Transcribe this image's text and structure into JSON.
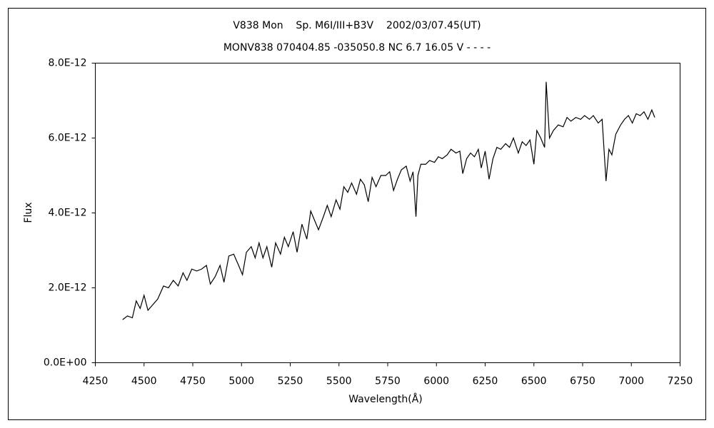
{
  "chart_data": {
    "type": "line",
    "title": "V838 Mon    Sp. M6I/III+B3V    2002/03/07.45(UT)",
    "subtitle": "MONV838 070404.85 -035050.8 NC 6.7 16.05 V - - - -",
    "x_label": "Wavelength(Å)",
    "y_label": "Flux",
    "color": "#000000",
    "grid": false,
    "xlim": [
      4250,
      7250
    ],
    "xticks": [
      4250,
      4500,
      4750,
      5000,
      5250,
      5500,
      5750,
      6000,
      6250,
      6500,
      6750,
      7000,
      7250
    ],
    "ylim": [
      0,
      8e-12
    ],
    "yticks": [
      {
        "value": 0,
        "label": "0.0E+00"
      },
      {
        "value": 2e-12,
        "label": "2.0E-12"
      },
      {
        "value": 4e-12,
        "label": "4.0E-12"
      },
      {
        "value": 6e-12,
        "label": "6.0E-12"
      },
      {
        "value": 8e-12,
        "label": "8.0E-12"
      }
    ],
    "x": [
      4390,
      4415,
      4440,
      4460,
      4480,
      4500,
      4520,
      4545,
      4570,
      4600,
      4625,
      4650,
      4675,
      4700,
      4720,
      4745,
      4770,
      4795,
      4820,
      4840,
      4865,
      4890,
      4910,
      4935,
      4960,
      4985,
      5005,
      5025,
      5050,
      5070,
      5090,
      5110,
      5130,
      5155,
      5175,
      5200,
      5220,
      5240,
      5265,
      5285,
      5310,
      5335,
      5355,
      5375,
      5395,
      5420,
      5440,
      5460,
      5485,
      5505,
      5525,
      5545,
      5565,
      5590,
      5610,
      5630,
      5650,
      5670,
      5690,
      5715,
      5740,
      5760,
      5780,
      5800,
      5820,
      5845,
      5865,
      5880,
      5895,
      5905,
      5920,
      5945,
      5965,
      5990,
      6010,
      6030,
      6055,
      6075,
      6100,
      6120,
      6135,
      6155,
      6175,
      6195,
      6215,
      6230,
      6250,
      6270,
      6290,
      6310,
      6330,
      6355,
      6375,
      6395,
      6420,
      6440,
      6460,
      6480,
      6500,
      6515,
      6535,
      6555,
      6563,
      6580,
      6600,
      6625,
      6650,
      6670,
      6690,
      6715,
      6740,
      6760,
      6785,
      6805,
      6830,
      6850,
      6870,
      6885,
      6900,
      6920,
      6945,
      6965,
      6985,
      7005,
      7025,
      7045,
      7065,
      7085,
      7105,
      7120
    ],
    "values": [
      1.15e-12,
      1.25e-12,
      1.2e-12,
      1.65e-12,
      1.45e-12,
      1.8e-12,
      1.4e-12,
      1.55e-12,
      1.7e-12,
      2.05e-12,
      2e-12,
      2.2e-12,
      2.05e-12,
      2.4e-12,
      2.2e-12,
      2.5e-12,
      2.45e-12,
      2.5e-12,
      2.6e-12,
      2.1e-12,
      2.3e-12,
      2.6e-12,
      2.15e-12,
      2.85e-12,
      2.9e-12,
      2.6e-12,
      2.35e-12,
      2.95e-12,
      3.1e-12,
      2.8e-12,
      3.2e-12,
      2.8e-12,
      3.1e-12,
      2.55e-12,
      3.2e-12,
      2.9e-12,
      3.35e-12,
      3.1e-12,
      3.5e-12,
      2.95e-12,
      3.7e-12,
      3.3e-12,
      4.05e-12,
      3.8e-12,
      3.55e-12,
      3.9e-12,
      4.2e-12,
      3.9e-12,
      4.35e-12,
      4.1e-12,
      4.7e-12,
      4.55e-12,
      4.8e-12,
      4.5e-12,
      4.9e-12,
      4.75e-12,
      4.3e-12,
      4.95e-12,
      4.7e-12,
      5e-12,
      5e-12,
      5.1e-12,
      4.6e-12,
      4.9e-12,
      5.15e-12,
      5.25e-12,
      4.85e-12,
      5.1e-12,
      3.9e-12,
      5e-12,
      5.3e-12,
      5.3e-12,
      5.4e-12,
      5.35e-12,
      5.5e-12,
      5.45e-12,
      5.55e-12,
      5.7e-12,
      5.6e-12,
      5.65e-12,
      5.05e-12,
      5.45e-12,
      5.6e-12,
      5.5e-12,
      5.7e-12,
      5.2e-12,
      5.65e-12,
      4.9e-12,
      5.45e-12,
      5.75e-12,
      5.7e-12,
      5.85e-12,
      5.75e-12,
      6e-12,
      5.6e-12,
      5.9e-12,
      5.8e-12,
      5.95e-12,
      5.3e-12,
      6.2e-12,
      6e-12,
      5.75e-12,
      7.5e-12,
      6e-12,
      6.2e-12,
      6.35e-12,
      6.3e-12,
      6.55e-12,
      6.45e-12,
      6.55e-12,
      6.5e-12,
      6.6e-12,
      6.5e-12,
      6.6e-12,
      6.4e-12,
      6.5e-12,
      4.85e-12,
      5.7e-12,
      5.55e-12,
      6.1e-12,
      6.35e-12,
      6.5e-12,
      6.6e-12,
      6.4e-12,
      6.65e-12,
      6.6e-12,
      6.7e-12,
      6.5e-12,
      6.75e-12,
      6.55e-12
    ]
  }
}
